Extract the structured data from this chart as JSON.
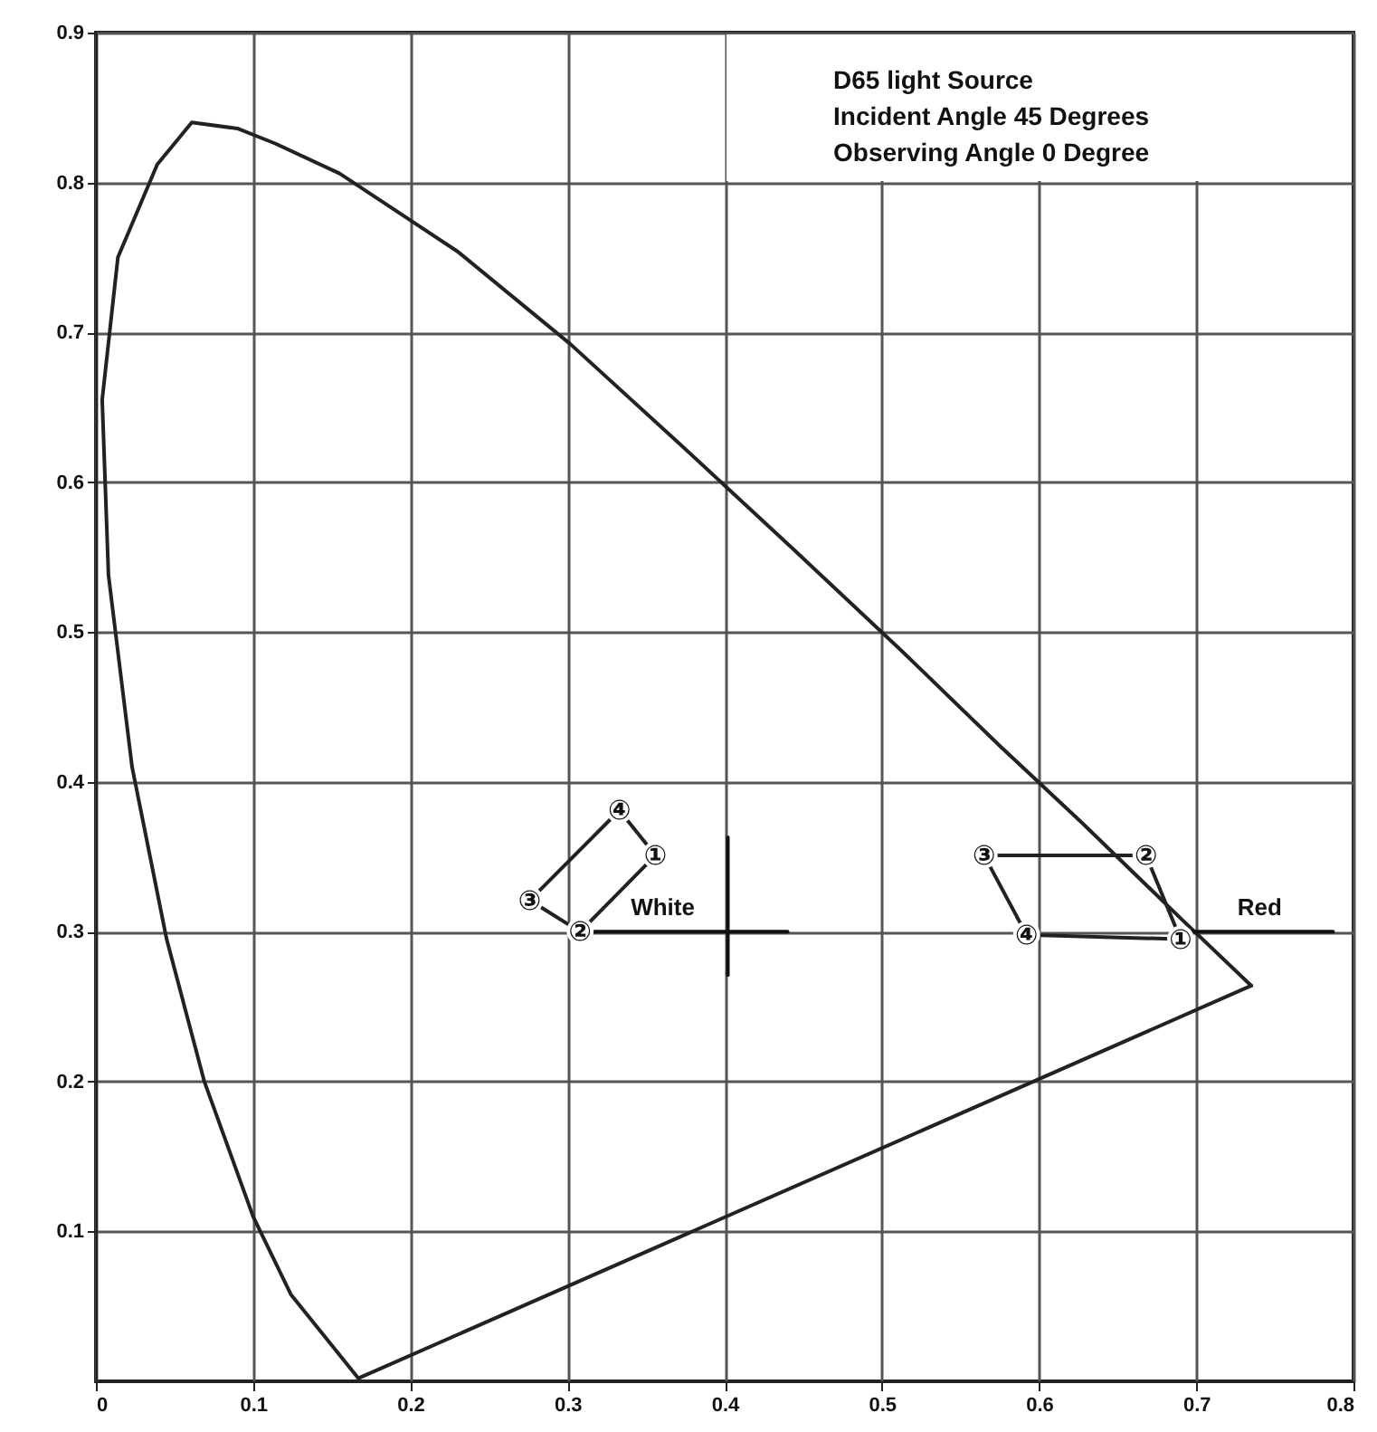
{
  "chart_data": {
    "type": "line",
    "xlim": [
      0,
      0.8
    ],
    "ylim": [
      0,
      0.9
    ],
    "xticks": [
      0,
      0.1,
      0.2,
      0.3,
      0.4,
      0.5,
      0.6,
      0.7,
      0.8
    ],
    "yticks": [
      0.1,
      0.2,
      0.3,
      0.4,
      0.5,
      0.6,
      0.7,
      0.8,
      0.9
    ],
    "grid": true,
    "series": [
      {
        "color": "#222222",
        "x": [
          0.167,
          0.124,
          0.1,
          0.069,
          0.045,
          0.023,
          0.008,
          0.004,
          0.014,
          0.039,
          0.061,
          0.09,
          0.114,
          0.155,
          0.23,
          0.302,
          0.373,
          0.444,
          0.513,
          0.575,
          0.627,
          0.691,
          0.735
        ],
        "values": [
          0.002,
          0.058,
          0.11,
          0.2,
          0.295,
          0.41,
          0.538,
          0.655,
          0.75,
          0.812,
          0.84,
          0.836,
          0.826,
          0.806,
          0.754,
          0.692,
          0.624,
          0.555,
          0.487,
          0.424,
          0.373,
          0.308,
          0.264
        ]
      },
      {
        "color": "#222222",
        "x": [
          0.167,
          0.735
        ],
        "values": [
          0.002,
          0.264
        ]
      },
      {
        "color": "#222222",
        "x": [
          0.276,
          0.333,
          0.356,
          0.308
        ],
        "values": [
          0.321,
          0.381,
          0.351,
          0.3
        ]
      },
      {
        "color": "#222222",
        "x": [
          0.276,
          0.308
        ],
        "values": [
          0.321,
          0.3
        ]
      },
      {
        "name": "White",
        "color": "#111111",
        "x": [
          0.308,
          0.44
        ],
        "values": [
          0.3,
          0.3
        ]
      },
      {
        "color": "#111111",
        "x": [
          0.402,
          0.402
        ],
        "values": [
          0.363,
          0.271
        ]
      },
      {
        "color": "#222222",
        "x": [
          0.565,
          0.668,
          0.69,
          0.592
        ],
        "values": [
          0.351,
          0.351,
          0.295,
          0.298
        ]
      },
      {
        "color": "#222222",
        "x": [
          0.565,
          0.592
        ],
        "values": [
          0.351,
          0.298
        ]
      },
      {
        "name": "Red",
        "color": "#111111",
        "x": [
          0.694,
          0.787
        ],
        "values": [
          0.3,
          0.3
        ]
      }
    ],
    "annotations": [
      "D65 light Source",
      "Incident Angle 45 Degrees",
      "Observing Angle 0 Degree",
      {
        "text": "①",
        "x": 0.356,
        "y": 0.351
      },
      {
        "text": "②",
        "x": 0.308,
        "y": 0.3
      },
      {
        "text": "③",
        "x": 0.276,
        "y": 0.321
      },
      {
        "text": "④",
        "x": 0.333,
        "y": 0.381
      },
      {
        "text": "①",
        "x": 0.69,
        "y": 0.295
      },
      {
        "text": "②",
        "x": 0.668,
        "y": 0.351
      },
      {
        "text": "③",
        "x": 0.565,
        "y": 0.351
      },
      {
        "text": "④",
        "x": 0.592,
        "y": 0.298
      }
    ]
  }
}
